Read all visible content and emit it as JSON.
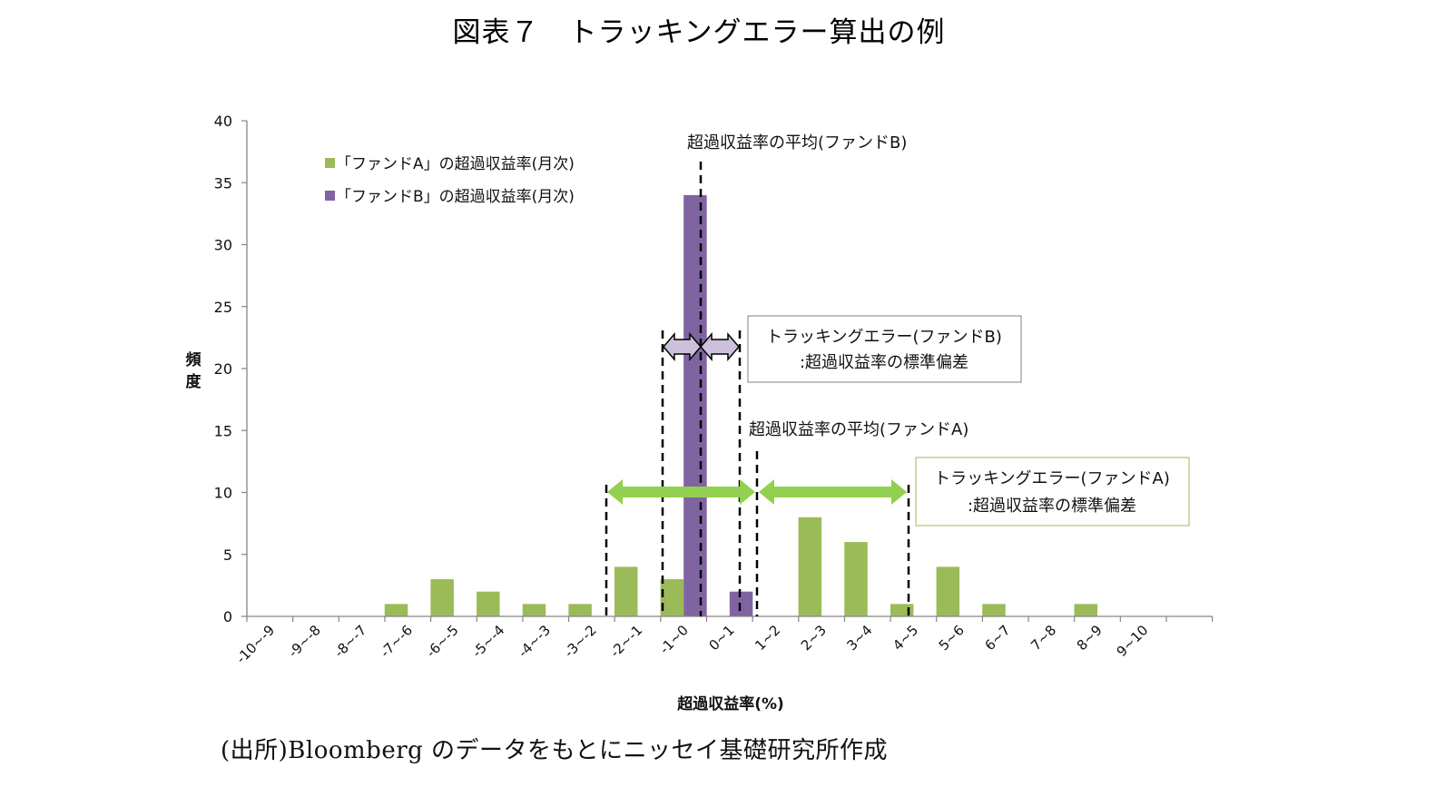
{
  "title": "図表７　トラッキングエラー算出の例",
  "source": "(出所)Bloomberg のデータをもとにニッセイ基礎研究所作成",
  "colors": {
    "fund_a": "#9bbb59",
    "fund_b": "#8064a2",
    "arrow_a": "#92d050",
    "arrow_b": "#ccc0da",
    "axis": "#868686"
  },
  "chart_data": {
    "type": "bar",
    "title": "トラッキングエラー算出の例",
    "xlabel": "超過収益率(%)",
    "ylabel": "頻度",
    "ylim": [
      0,
      40
    ],
    "yticks": [
      0,
      5,
      10,
      15,
      20,
      25,
      30,
      35,
      40
    ],
    "grid": false,
    "legend_position": "top-left inside",
    "categories": [
      "-10~-9",
      "-9~-8",
      "-8~-7",
      "-7~-6",
      "-6~-5",
      "-5~-4",
      "-4~-3",
      "-3~-2",
      "-2~-1",
      "-1~0",
      "0~1",
      "1~2",
      "2~3",
      "3~4",
      "4~5",
      "5~6",
      "6~7",
      "7~8",
      "8~9",
      "9~10"
    ],
    "series": [
      {
        "name": "「ファンドA」の超過収益率(月次)",
        "color": "#9bbb59",
        "values": [
          0,
          0,
          0,
          1,
          3,
          2,
          1,
          1,
          4,
          3,
          0,
          0,
          8,
          6,
          1,
          4,
          1,
          0,
          1,
          0
        ]
      },
      {
        "name": "「ファンドB」の超過収益率(月次)",
        "color": "#8064a2",
        "values": [
          0,
          0,
          0,
          0,
          0,
          0,
          0,
          0,
          0,
          34,
          2,
          0,
          0,
          0,
          0,
          0,
          0,
          0,
          0,
          0
        ]
      }
    ],
    "annotations": [
      {
        "text": "超過収益率の平均(ファンドB)",
        "type": "dashed-vertical-line"
      },
      {
        "text": "トラッキングエラー(ファンドB)",
        "text2": ":超過収益率の標準偏差",
        "type": "boxed-label-with-double-arrows"
      },
      {
        "text": "超過収益率の平均(ファンドA)",
        "type": "dashed-vertical-line"
      },
      {
        "text": "トラッキングエラー(ファンドA)",
        "text2": ":超過収益率の標準偏差",
        "type": "boxed-label-with-double-arrows"
      }
    ]
  }
}
